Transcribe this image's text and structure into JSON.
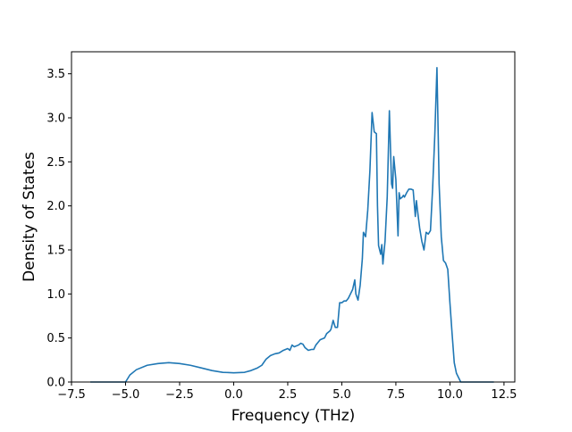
{
  "chart_data": {
    "type": "line",
    "title": "",
    "xlabel": "Frequency (THz)",
    "ylabel": "Density of States",
    "xlim": [
      -7.5,
      13.0
    ],
    "ylim": [
      0.0,
      3.75
    ],
    "grid": false,
    "legend": "none",
    "x_ticks": [
      -7.5,
      -5.0,
      -2.5,
      0.0,
      2.5,
      5.0,
      7.5,
      10.0,
      12.5
    ],
    "x_tick_labels": [
      "−7.5",
      "−5.0",
      "−2.5",
      "0.0",
      "2.5",
      "5.0",
      "7.5",
      "10.0",
      "12.5"
    ],
    "y_ticks": [
      0.0,
      0.5,
      1.0,
      1.5,
      2.0,
      2.5,
      3.0,
      3.5
    ],
    "y_tick_labels": [
      "0.0",
      "0.5",
      "1.0",
      "1.5",
      "2.0",
      "2.5",
      "3.0",
      "3.5"
    ],
    "series": [
      {
        "color": "#1f77b4",
        "x": [
          -6.6,
          -5.0,
          -4.8,
          -4.5,
          -4.0,
          -3.5,
          -3.0,
          -2.5,
          -2.0,
          -1.5,
          -1.0,
          -0.5,
          0.0,
          0.5,
          0.8,
          1.1,
          1.3,
          1.5,
          1.7,
          1.9,
          2.1,
          2.3,
          2.5,
          2.6,
          2.7,
          2.8,
          3.0,
          3.1,
          3.2,
          3.3,
          3.45,
          3.6,
          3.7,
          3.8,
          3.9,
          4.0,
          4.2,
          4.3,
          4.45,
          4.5,
          4.6,
          4.7,
          4.8,
          4.9,
          5.0,
          5.1,
          5.2,
          5.3,
          5.4,
          5.5,
          5.6,
          5.65,
          5.75,
          5.85,
          5.95,
          6.0,
          6.1,
          6.2,
          6.3,
          6.4,
          6.5,
          6.6,
          6.65,
          6.7,
          6.8,
          6.85,
          6.9,
          7.0,
          7.1,
          7.2,
          7.3,
          7.35,
          7.4,
          7.5,
          7.6,
          7.65,
          7.7,
          7.8,
          7.85,
          7.9,
          8.0,
          8.1,
          8.2,
          8.3,
          8.4,
          8.45,
          8.5,
          8.6,
          8.7,
          8.75,
          8.8,
          8.9,
          9.0,
          9.1,
          9.2,
          9.3,
          9.4,
          9.5,
          9.55,
          9.6,
          9.7,
          9.8,
          9.9,
          10.0,
          10.1,
          10.2,
          10.3,
          10.5,
          10.7,
          12.0
        ],
        "y": [
          0.0,
          0.0,
          0.08,
          0.14,
          0.19,
          0.21,
          0.22,
          0.21,
          0.19,
          0.16,
          0.13,
          0.11,
          0.105,
          0.11,
          0.13,
          0.16,
          0.19,
          0.26,
          0.3,
          0.32,
          0.33,
          0.36,
          0.38,
          0.36,
          0.42,
          0.4,
          0.42,
          0.44,
          0.43,
          0.39,
          0.36,
          0.37,
          0.37,
          0.42,
          0.45,
          0.48,
          0.5,
          0.55,
          0.58,
          0.6,
          0.7,
          0.62,
          0.62,
          0.9,
          0.9,
          0.92,
          0.92,
          0.95,
          1.0,
          1.05,
          1.16,
          1.0,
          0.93,
          1.1,
          1.4,
          1.7,
          1.65,
          1.95,
          2.4,
          3.06,
          2.84,
          2.82,
          2.0,
          1.55,
          1.45,
          1.56,
          1.34,
          1.6,
          2.1,
          3.08,
          2.25,
          2.2,
          2.56,
          2.3,
          1.66,
          2.15,
          2.08,
          2.1,
          2.12,
          2.1,
          2.15,
          2.19,
          2.19,
          2.18,
          1.88,
          2.06,
          1.95,
          1.75,
          1.6,
          1.55,
          1.5,
          1.7,
          1.68,
          1.72,
          2.2,
          2.8,
          3.57,
          2.25,
          1.95,
          1.65,
          1.38,
          1.35,
          1.28,
          0.9,
          0.55,
          0.22,
          0.1,
          0.0,
          0.0,
          0.0
        ]
      }
    ]
  }
}
